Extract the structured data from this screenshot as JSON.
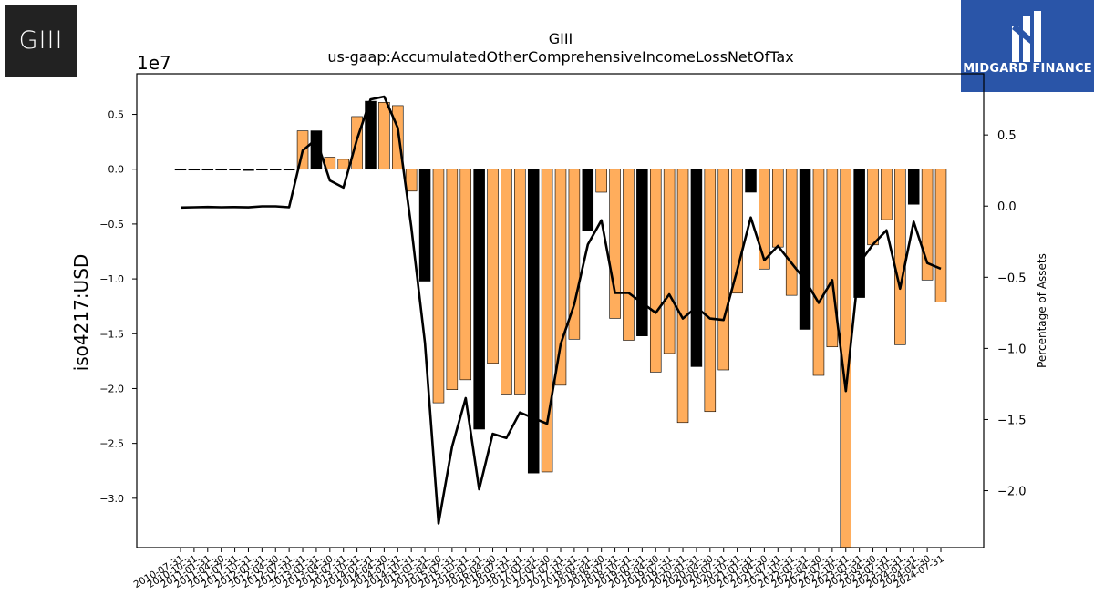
{
  "logos": {
    "left_text": "GIII",
    "right_text": "MIDGARD FINANCE"
  },
  "chart_data": {
    "type": "bar",
    "title": "GIII",
    "subtitle": "us-gaap:AccumulatedOtherComprehensiveIncomeLossNetOfTax",
    "ylabel": "iso4217:USD",
    "y_scale_label": "1e7",
    "y2label": "Percentage of Assets",
    "ylim": [
      -3.45,
      0.87
    ],
    "y2lim": [
      -2.4,
      0.93
    ],
    "yticks": [
      "0.5",
      "0.0",
      "−0.5",
      "−1.0",
      "−1.5",
      "−2.0",
      "−2.5",
      "−3.0"
    ],
    "yticks_values": [
      0.5,
      0.0,
      -0.5,
      -1.0,
      -1.5,
      -2.0,
      -2.5,
      -3.0
    ],
    "y2ticks": [
      "0.5",
      "0.0",
      "−0.5",
      "−1.0",
      "−1.5",
      "−2.0"
    ],
    "y2ticks_values": [
      0.5,
      0.0,
      -0.5,
      -1.0,
      -1.5,
      -2.0
    ],
    "xticks": [
      "2010-07-31",
      "2010-10-31",
      "2011-01-31",
      "2011-04-30",
      "2011-07-31",
      "2011-10-31",
      "2012-01-31",
      "2012-04-30",
      "2012-07-31",
      "2012-10-31",
      "2013-01-31",
      "2013-04-30",
      "2013-07-31",
      "2013-10-31",
      "2014-01-31",
      "2014-04-30",
      "2014-07-31",
      "2014-10-31",
      "2015-01-31",
      "2015-04-30",
      "2015-07-31",
      "2015-10-31",
      "2016-01-31",
      "2016-04-30",
      "2016-07-31",
      "2016-10-31",
      "2017-01-31",
      "2017-04-30",
      "2017-07-31",
      "2017-10-31",
      "2018-01-31",
      "2018-04-30",
      "2018-07-31",
      "2018-10-31",
      "2019-01-31",
      "2019-04-30",
      "2019-07-31",
      "2019-10-31",
      "2020-01-31",
      "2020-04-30",
      "2020-07-31",
      "2020-10-31",
      "2021-01-31",
      "2021-04-30",
      "2021-07-31",
      "2021-10-31",
      "2022-01-31",
      "2022-04-30",
      "2022-07-31",
      "2022-10-31",
      "2023-01-31",
      "2023-04-30",
      "2023-07-31",
      "2023-10-31",
      "2024-01-31",
      "2024-04-30",
      "2024-07-31"
    ],
    "series": [
      {
        "kind": "bar",
        "values": [
          -0.003,
          -0.003,
          -0.003,
          -0.003,
          -0.003,
          -0.012,
          -0.003,
          -0.003,
          -0.003,
          0.35,
          0.35,
          0.11,
          0.09,
          0.48,
          0.62,
          0.61,
          0.58,
          -0.2,
          -1.02,
          -2.13,
          -2.01,
          -1.92,
          -2.37,
          -1.77,
          -2.05,
          -2.05,
          -2.77,
          -2.76,
          -1.97,
          -1.55,
          -0.56,
          -0.21,
          -1.36,
          -1.56,
          -1.52,
          -1.85,
          -1.68,
          -2.31,
          -1.8,
          -2.21,
          -1.83,
          -1.13,
          -0.21,
          -0.91,
          -0.71,
          -1.15,
          -1.46,
          -1.88,
          -1.62,
          -3.45,
          -1.17,
          -0.69,
          -0.46,
          -1.6,
          -0.32,
          -1.01,
          -1.21
        ],
        "colors": [
          "#000000",
          "#000000",
          "#000000",
          "#000000",
          "#000000",
          "#000000",
          "#000000",
          "#000000",
          "#000000",
          "#ffad5c",
          "#000000",
          "#ffad5c",
          "#ffad5c",
          "#ffad5c",
          "#000000",
          "#ffad5c",
          "#ffad5c",
          "#ffad5c",
          "#000000",
          "#ffad5c",
          "#ffad5c",
          "#ffad5c",
          "#000000",
          "#ffad5c",
          "#ffad5c",
          "#ffad5c",
          "#000000",
          "#ffad5c",
          "#ffad5c",
          "#ffad5c",
          "#000000",
          "#ffad5c",
          "#ffad5c",
          "#ffad5c",
          "#000000",
          "#ffad5c",
          "#ffad5c",
          "#ffad5c",
          "#000000",
          "#ffad5c",
          "#ffad5c",
          "#ffad5c",
          "#000000",
          "#ffad5c",
          "#ffad5c",
          "#ffad5c",
          "#000000",
          "#ffad5c",
          "#ffad5c",
          "#ffad5c",
          "#000000",
          "#ffad5c",
          "#ffad5c",
          "#ffad5c",
          "#000000",
          "#ffad5c",
          "#ffad5c"
        ]
      },
      {
        "kind": "line",
        "axis": "right",
        "color": "#000000",
        "values": [
          -0.01,
          -0.008,
          -0.006,
          -0.008,
          -0.007,
          -0.009,
          -0.002,
          -0.002,
          -0.008,
          0.39,
          0.47,
          0.18,
          0.13,
          0.47,
          0.75,
          0.77,
          0.55,
          -0.15,
          -0.96,
          -2.23,
          -1.69,
          -1.35,
          -1.99,
          -1.6,
          -1.63,
          -1.45,
          -1.49,
          -1.53,
          -0.97,
          -0.69,
          -0.27,
          -0.1,
          -0.61,
          -0.61,
          -0.68,
          -0.75,
          -0.62,
          -0.79,
          -0.71,
          -0.79,
          -0.8,
          -0.45,
          -0.08,
          -0.38,
          -0.28,
          -0.4,
          -0.52,
          -0.68,
          -0.52,
          -1.3,
          -0.4,
          -0.27,
          -0.17,
          -0.58,
          -0.11,
          -0.4,
          -0.44
        ]
      }
    ],
    "colors": {
      "bar_default": "#ffad5c",
      "bar_highlight": "#000000",
      "line": "#000000"
    },
    "grid": false,
    "legend": "none"
  }
}
